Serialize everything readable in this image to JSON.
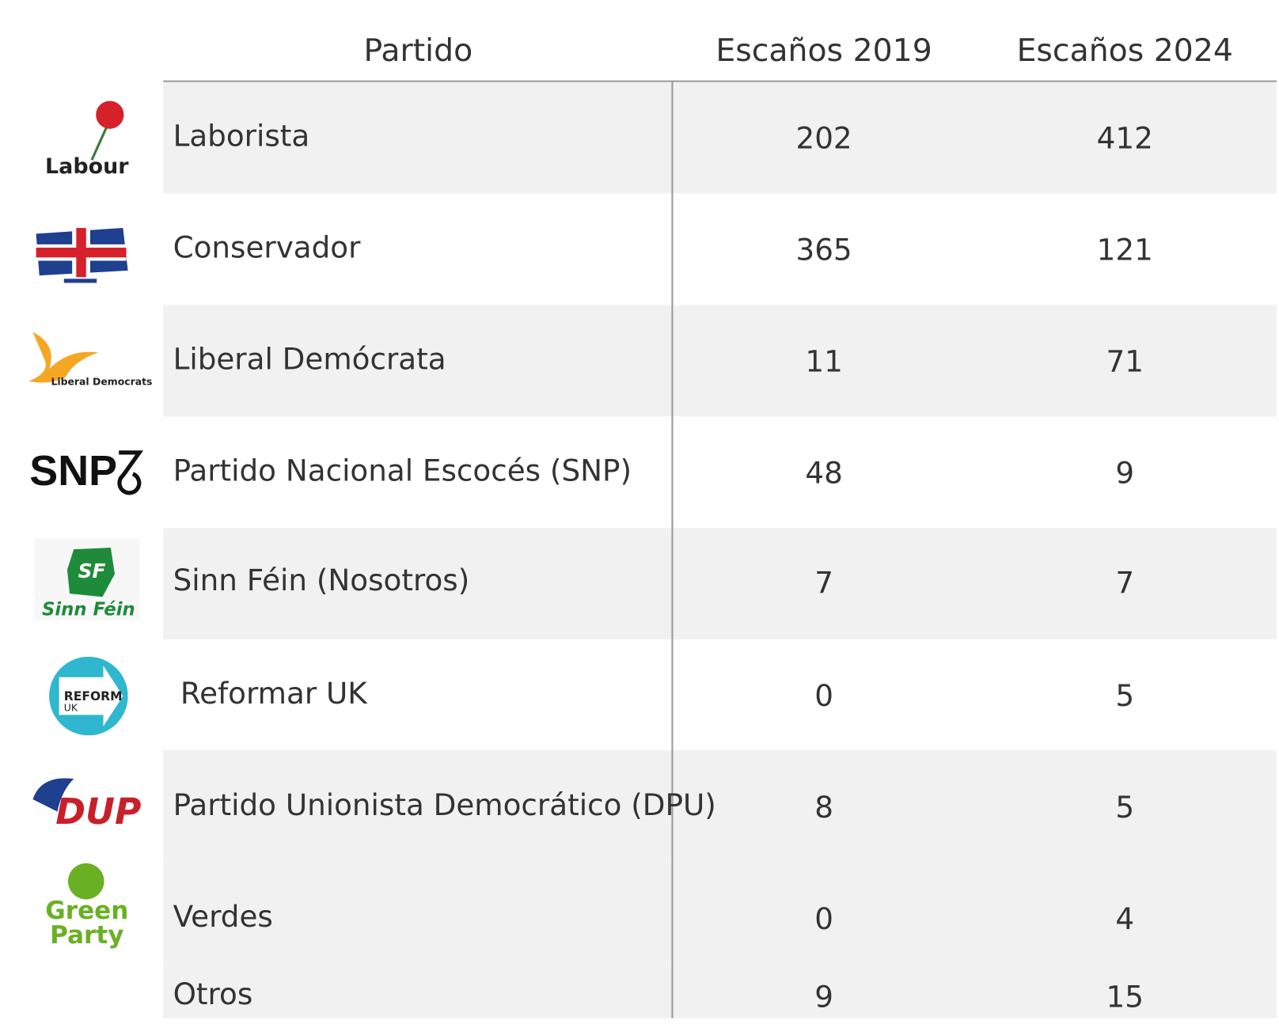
{
  "table": {
    "header": [
      "Partido",
      "Escaños 2019",
      "Escaños 2024"
    ],
    "rows": [
      {
        "logo": [
          "Labour"
        ],
        "party": "Laborista",
        "s2019": "202",
        "s2024": "412"
      },
      {
        "logo": [],
        "party": "Conservador",
        "s2019": "365",
        "s2024": "121"
      },
      {
        "logo": [
          "Liberal Democrats"
        ],
        "party": "Liberal Demócrata",
        "s2019": "11",
        "s2024": "71"
      },
      {
        "logo": [
          "SNP"
        ],
        "party": "Partido Nacional Escocés (SNP)",
        "s2019": "48",
        "s2024": "9"
      },
      {
        "logo": [
          "SF",
          "Sinn Féin"
        ],
        "party": "Sinn Féin (Nosotros)",
        "s2019": "7",
        "s2024": "7"
      },
      {
        "logo": [
          "REFORM",
          "UK"
        ],
        "party": "Reformar UK",
        "s2019": "0",
        "s2024": "5"
      },
      {
        "logo": [
          "DUP"
        ],
        "party": "Partido Unionista Democrático (DPU)",
        "s2019": "8",
        "s2024": "5"
      },
      {
        "logo": [
          "Green",
          "Party"
        ],
        "party": "Verdes",
        "s2019": "0",
        "s2024": "4"
      },
      {
        "logo": [],
        "party": "Otros",
        "s2019": "9",
        "s2024": "15"
      }
    ]
  }
}
